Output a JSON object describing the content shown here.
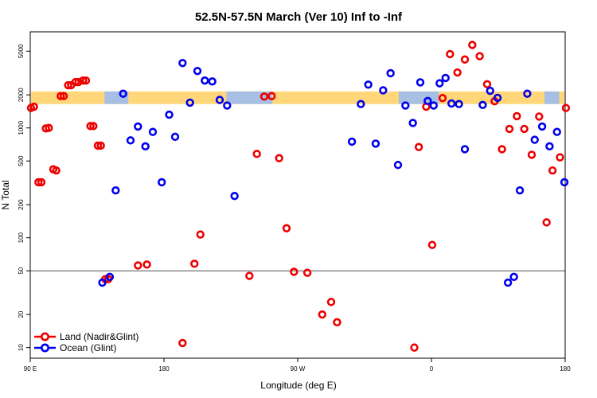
{
  "chart_data": {
    "type": "scatter",
    "title": "52.5N-57.5N March (Ver 10)   Inf to -Inf",
    "xlabel": "Longitude (deg E)",
    "ylabel": "N Total",
    "xlim": [
      90,
      450
    ],
    "ylim": [
      8,
      7500
    ],
    "y_scale": "log",
    "x_ticks": [
      {
        "value": 90,
        "label": "90 E"
      },
      {
        "value": 180,
        "label": "180"
      },
      {
        "value": 270,
        "label": "90 W"
      },
      {
        "value": 360,
        "label": "0"
      },
      {
        "value": 450,
        "label": "180"
      }
    ],
    "y_ticks": [
      {
        "value": 10,
        "label": "10"
      },
      {
        "value": 20,
        "label": "20"
      },
      {
        "value": 50,
        "label": "50"
      },
      {
        "value": 100,
        "label": "100"
      },
      {
        "value": 200,
        "label": "200"
      },
      {
        "value": 500,
        "label": "500"
      },
      {
        "value": 1000,
        "label": "1000"
      },
      {
        "value": 2000,
        "label": "2000"
      },
      {
        "value": 5000,
        "label": "5000"
      }
    ],
    "reference_line": {
      "value": 50,
      "color": "#555555"
    },
    "band": {
      "y_range": [
        1650,
        2150
      ],
      "land_color": "#FFD77A",
      "ocean_color": "#A7BFE3",
      "ocean_segments": [
        [
          140,
          156
        ],
        [
          222,
          253
        ],
        [
          338,
          365
        ],
        [
          436,
          446
        ]
      ]
    },
    "legend_position": "bottom-left",
    "series": [
      {
        "name": "Land (Nadir&Glint)",
        "color": "#EE0000",
        "points": [
          {
            "x": 92.5,
            "y": 1560
          },
          {
            "x": 97.5,
            "y": 320
          },
          {
            "x": 102.5,
            "y": 1000
          },
          {
            "x": 107.5,
            "y": 410
          },
          {
            "x": 112.5,
            "y": 1950
          },
          {
            "x": 117.5,
            "y": 2450
          },
          {
            "x": 122.5,
            "y": 2620
          },
          {
            "x": 127.5,
            "y": 2700
          },
          {
            "x": 132.5,
            "y": 1040
          },
          {
            "x": 137.5,
            "y": 690
          },
          {
            "x": 142.5,
            "y": 42
          },
          {
            "x": 162.5,
            "y": 56
          },
          {
            "x": 192.5,
            "y": 11
          },
          {
            "x": 200.5,
            "y": 58
          },
          {
            "x": 204.5,
            "y": 107
          },
          {
            "x": 237.5,
            "y": 45
          },
          {
            "x": 242.5,
            "y": 580
          },
          {
            "x": 247.5,
            "y": 1930
          },
          {
            "x": 252.5,
            "y": 1950
          },
          {
            "x": 257.5,
            "y": 530
          },
          {
            "x": 262.5,
            "y": 122
          },
          {
            "x": 267.5,
            "y": 49
          },
          {
            "x": 276.5,
            "y": 48
          },
          {
            "x": 286.5,
            "y": 20
          },
          {
            "x": 292.5,
            "y": 26
          },
          {
            "x": 296.5,
            "y": 17
          },
          {
            "x": 348.5,
            "y": 10
          },
          {
            "x": 351.5,
            "y": 670
          },
          {
            "x": 356.5,
            "y": 1560
          },
          {
            "x": 360.5,
            "y": 86
          },
          {
            "x": 367.5,
            "y": 1870
          },
          {
            "x": 372.5,
            "y": 4700
          },
          {
            "x": 377.5,
            "y": 3200
          },
          {
            "x": 382.5,
            "y": 4200
          },
          {
            "x": 387.5,
            "y": 5700
          },
          {
            "x": 392.5,
            "y": 4500
          },
          {
            "x": 397.5,
            "y": 2500
          },
          {
            "x": 402.5,
            "y": 1750
          },
          {
            "x": 407.5,
            "y": 640
          },
          {
            "x": 412.5,
            "y": 980
          },
          {
            "x": 417.5,
            "y": 1280
          },
          {
            "x": 422.5,
            "y": 980
          },
          {
            "x": 427.5,
            "y": 570
          },
          {
            "x": 432.5,
            "y": 1270
          },
          {
            "x": 437.5,
            "y": 138
          },
          {
            "x": 441.5,
            "y": 410
          },
          {
            "x": 446.5,
            "y": 540
          },
          {
            "x": 450.5,
            "y": 1520
          }
        ],
        "wrapped_points": [
          {
            "x": 90.5,
            "y": 1520
          },
          {
            "x": 95.5,
            "y": 320
          },
          {
            "x": 100.5,
            "y": 990
          },
          {
            "x": 105.5,
            "y": 420
          },
          {
            "x": 110.5,
            "y": 1950
          },
          {
            "x": 115.5,
            "y": 2450
          },
          {
            "x": 120.5,
            "y": 2620
          },
          {
            "x": 125.5,
            "y": 2700
          },
          {
            "x": 130.5,
            "y": 1040
          },
          {
            "x": 135.5,
            "y": 690
          },
          {
            "x": 140.5,
            "y": 42
          },
          {
            "x": 168.5,
            "y": 57
          }
        ]
      },
      {
        "name": "Ocean (Glint)",
        "color": "#0000EE",
        "points": [
          {
            "x": 138.5,
            "y": 39
          },
          {
            "x": 143.5,
            "y": 44
          },
          {
            "x": 147.5,
            "y": 270
          },
          {
            "x": 152.5,
            "y": 2050
          },
          {
            "x": 157.5,
            "y": 770
          },
          {
            "x": 162.5,
            "y": 1030
          },
          {
            "x": 167.5,
            "y": 680
          },
          {
            "x": 172.5,
            "y": 920
          },
          {
            "x": 178.5,
            "y": 320
          },
          {
            "x": 183.5,
            "y": 1320
          },
          {
            "x": 187.5,
            "y": 830
          },
          {
            "x": 192.5,
            "y": 3900
          },
          {
            "x": 197.5,
            "y": 1700
          },
          {
            "x": 202.5,
            "y": 3300
          },
          {
            "x": 207.5,
            "y": 2700
          },
          {
            "x": 212.5,
            "y": 2650
          },
          {
            "x": 217.5,
            "y": 1800
          },
          {
            "x": 222.5,
            "y": 1600
          },
          {
            "x": 227.5,
            "y": 240
          },
          {
            "x": 306.5,
            "y": 750
          },
          {
            "x": 312.5,
            "y": 1650
          },
          {
            "x": 317.5,
            "y": 2480
          },
          {
            "x": 322.5,
            "y": 720
          },
          {
            "x": 327.5,
            "y": 2200
          },
          {
            "x": 332.5,
            "y": 3150
          },
          {
            "x": 337.5,
            "y": 460
          },
          {
            "x": 342.5,
            "y": 1600
          },
          {
            "x": 347.5,
            "y": 1110
          },
          {
            "x": 352.5,
            "y": 2600
          },
          {
            "x": 357.5,
            "y": 1760
          },
          {
            "x": 361.5,
            "y": 1600
          },
          {
            "x": 365.5,
            "y": 2550
          },
          {
            "x": 369.5,
            "y": 2850
          },
          {
            "x": 373.5,
            "y": 1670
          },
          {
            "x": 378.5,
            "y": 1650
          },
          {
            "x": 382.5,
            "y": 640
          },
          {
            "x": 394.5,
            "y": 1620
          },
          {
            "x": 399.5,
            "y": 2180
          },
          {
            "x": 404.5,
            "y": 1880
          },
          {
            "x": 411.5,
            "y": 39
          },
          {
            "x": 415.5,
            "y": 44
          },
          {
            "x": 419.5,
            "y": 270
          },
          {
            "x": 424.5,
            "y": 2050
          },
          {
            "x": 429.5,
            "y": 780
          },
          {
            "x": 434.5,
            "y": 1030
          },
          {
            "x": 439.5,
            "y": 680
          },
          {
            "x": 444.5,
            "y": 920
          },
          {
            "x": 449.5,
            "y": 320
          }
        ]
      }
    ]
  }
}
